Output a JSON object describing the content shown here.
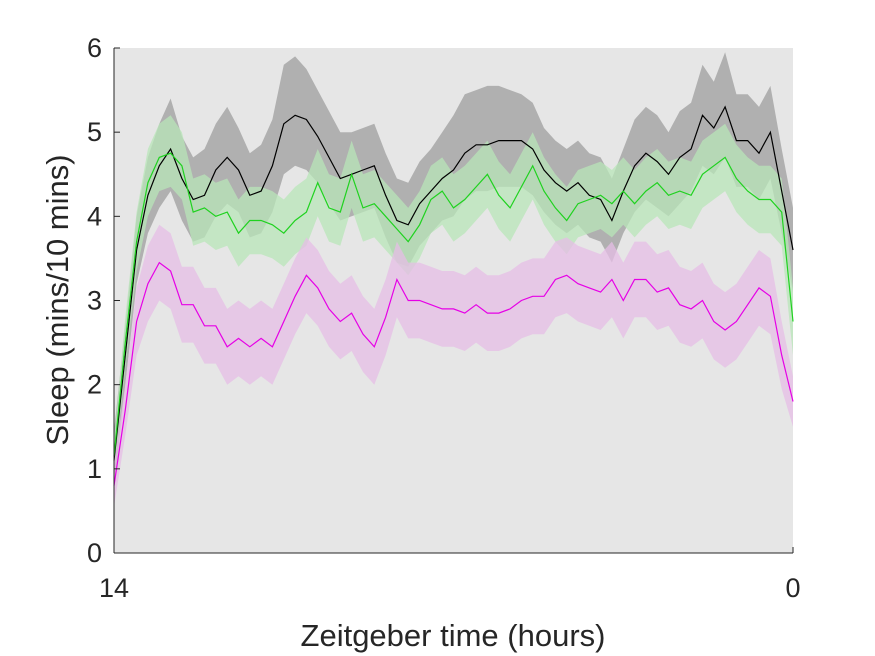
{
  "chart_data": {
    "type": "line",
    "title": "",
    "xlabel": "Zeitgeber time (hours)",
    "ylabel": "Sleep (mins/10 mins)",
    "xlim": [
      14,
      0
    ],
    "ylim": [
      0,
      6
    ],
    "x_ticks": [
      14,
      0
    ],
    "y_ticks": [
      0,
      1,
      2,
      3,
      4,
      5,
      6
    ],
    "grid": false,
    "legend": "none",
    "background_color": "#e6e6e6",
    "n_points": 61,
    "series": [
      {
        "color": "#000000",
        "band_color": "#a6a6a6",
        "values": [
          1.1,
          2.35,
          3.6,
          4.25,
          4.6,
          4.8,
          4.45,
          4.2,
          4.25,
          4.55,
          4.7,
          4.55,
          4.25,
          4.3,
          4.6,
          5.1,
          5.2,
          5.15,
          4.95,
          4.7,
          4.45,
          4.5,
          4.55,
          4.6,
          4.25,
          3.95,
          3.9,
          4.15,
          4.3,
          4.45,
          4.55,
          4.75,
          4.85,
          4.85,
          4.9,
          4.9,
          4.9,
          4.8,
          4.55,
          4.4,
          4.3,
          4.4,
          4.25,
          4.2,
          3.95,
          4.3,
          4.6,
          4.75,
          4.65,
          4.5,
          4.7,
          4.8,
          5.2,
          5.05,
          5.3,
          4.9,
          4.9,
          4.75,
          5.0,
          4.3,
          3.6
        ],
        "lower": [
          0.75,
          2.0,
          3.2,
          3.8,
          4.1,
          4.3,
          3.95,
          3.7,
          3.75,
          4.0,
          4.15,
          4.05,
          3.75,
          3.8,
          4.05,
          4.5,
          4.6,
          4.55,
          4.4,
          4.15,
          3.95,
          4.0,
          4.05,
          4.1,
          3.75,
          3.45,
          3.4,
          3.65,
          3.8,
          3.95,
          4.0,
          4.2,
          4.3,
          4.3,
          4.35,
          4.35,
          4.35,
          4.25,
          4.05,
          3.9,
          3.8,
          3.9,
          3.75,
          3.7,
          3.45,
          3.8,
          4.05,
          4.2,
          4.1,
          4.0,
          4.15,
          4.3,
          4.6,
          4.5,
          4.7,
          4.35,
          4.35,
          4.2,
          4.45,
          3.8,
          3.1
        ],
        "upper": [
          1.45,
          2.7,
          4.0,
          4.7,
          5.1,
          5.4,
          4.95,
          4.7,
          4.8,
          5.1,
          5.3,
          5.05,
          4.75,
          4.85,
          5.15,
          5.8,
          5.9,
          5.75,
          5.5,
          5.25,
          5.0,
          5.0,
          5.05,
          5.1,
          4.75,
          4.45,
          4.4,
          4.65,
          4.8,
          5.0,
          5.2,
          5.45,
          5.5,
          5.55,
          5.55,
          5.5,
          5.45,
          5.35,
          5.05,
          4.9,
          4.8,
          4.9,
          4.75,
          4.7,
          4.45,
          4.8,
          5.15,
          5.3,
          5.2,
          5.0,
          5.25,
          5.35,
          5.8,
          5.6,
          5.95,
          5.45,
          5.45,
          5.3,
          5.55,
          4.8,
          4.1
        ]
      },
      {
        "color": "#1fd21f",
        "band_color": "#b8e6b8",
        "values": [
          1.15,
          2.5,
          3.7,
          4.4,
          4.7,
          4.75,
          4.6,
          4.05,
          4.1,
          4.0,
          4.05,
          3.8,
          3.95,
          3.95,
          3.9,
          3.8,
          3.95,
          4.05,
          4.4,
          4.1,
          4.05,
          4.5,
          4.1,
          4.15,
          4.0,
          3.85,
          3.7,
          3.9,
          4.2,
          4.3,
          4.1,
          4.2,
          4.35,
          4.5,
          4.25,
          4.1,
          4.35,
          4.6,
          4.3,
          4.1,
          3.95,
          4.15,
          4.2,
          4.25,
          4.15,
          4.3,
          4.15,
          4.3,
          4.4,
          4.25,
          4.3,
          4.25,
          4.5,
          4.6,
          4.7,
          4.45,
          4.3,
          4.2,
          4.2,
          4.05,
          2.75
        ],
        "lower": [
          0.95,
          2.2,
          3.35,
          4.0,
          4.3,
          4.35,
          4.2,
          3.65,
          3.7,
          3.6,
          3.65,
          3.4,
          3.55,
          3.55,
          3.5,
          3.4,
          3.55,
          3.65,
          4.0,
          3.7,
          3.65,
          4.1,
          3.7,
          3.75,
          3.6,
          3.45,
          3.3,
          3.5,
          3.8,
          3.9,
          3.7,
          3.8,
          3.95,
          4.1,
          3.85,
          3.7,
          3.95,
          4.2,
          3.9,
          3.7,
          3.55,
          3.75,
          3.8,
          3.85,
          3.75,
          3.9,
          3.75,
          3.9,
          4.0,
          3.85,
          3.9,
          3.85,
          4.1,
          4.2,
          4.3,
          4.05,
          3.9,
          3.8,
          3.8,
          3.65,
          2.35
        ],
        "upper": [
          1.35,
          2.8,
          4.05,
          4.8,
          5.1,
          5.2,
          5.0,
          4.45,
          4.5,
          4.4,
          4.45,
          4.2,
          4.35,
          4.35,
          4.3,
          4.2,
          4.35,
          4.45,
          4.8,
          4.5,
          4.45,
          4.9,
          4.5,
          4.55,
          4.4,
          4.25,
          4.1,
          4.3,
          4.6,
          4.7,
          4.5,
          4.6,
          4.75,
          4.9,
          4.65,
          4.5,
          4.75,
          5.0,
          4.7,
          4.5,
          4.35,
          4.55,
          4.6,
          4.65,
          4.55,
          4.7,
          4.55,
          4.7,
          4.8,
          4.65,
          4.7,
          4.65,
          4.9,
          5.0,
          5.1,
          4.85,
          4.7,
          4.6,
          4.6,
          4.45,
          3.15
        ]
      },
      {
        "color": "#e600e6",
        "band_color": "#e6bde6",
        "values": [
          0.8,
          1.7,
          2.75,
          3.2,
          3.45,
          3.35,
          2.95,
          2.95,
          2.7,
          2.7,
          2.45,
          2.55,
          2.45,
          2.55,
          2.45,
          2.75,
          3.05,
          3.3,
          3.15,
          2.9,
          2.75,
          2.85,
          2.6,
          2.45,
          2.8,
          3.25,
          3.0,
          3.0,
          2.95,
          2.9,
          2.9,
          2.85,
          2.95,
          2.85,
          2.85,
          2.9,
          3.0,
          3.05,
          3.05,
          3.25,
          3.3,
          3.2,
          3.15,
          3.1,
          3.25,
          3.0,
          3.25,
          3.25,
          3.1,
          3.15,
          2.95,
          2.9,
          3.0,
          2.75,
          2.65,
          2.75,
          2.95,
          3.15,
          3.05,
          2.35,
          1.8
        ],
        "lower": [
          0.55,
          1.4,
          2.35,
          2.75,
          3.0,
          2.9,
          2.5,
          2.5,
          2.25,
          2.25,
          2.0,
          2.1,
          2.0,
          2.1,
          2.0,
          2.3,
          2.6,
          2.85,
          2.7,
          2.45,
          2.3,
          2.4,
          2.15,
          2.0,
          2.35,
          2.8,
          2.55,
          2.55,
          2.5,
          2.45,
          2.45,
          2.4,
          2.5,
          2.4,
          2.4,
          2.45,
          2.55,
          2.6,
          2.6,
          2.8,
          2.85,
          2.75,
          2.7,
          2.65,
          2.8,
          2.55,
          2.8,
          2.8,
          2.65,
          2.7,
          2.5,
          2.45,
          2.55,
          2.3,
          2.2,
          2.3,
          2.5,
          2.7,
          2.6,
          1.95,
          1.5
        ],
        "upper": [
          1.05,
          2.0,
          3.15,
          3.65,
          3.9,
          3.8,
          3.4,
          3.4,
          3.15,
          3.15,
          2.9,
          3.0,
          2.9,
          3.0,
          2.9,
          3.2,
          3.5,
          3.75,
          3.6,
          3.35,
          3.2,
          3.3,
          3.05,
          2.9,
          3.25,
          3.7,
          3.45,
          3.45,
          3.4,
          3.35,
          3.35,
          3.3,
          3.4,
          3.3,
          3.3,
          3.35,
          3.45,
          3.5,
          3.5,
          3.7,
          3.75,
          3.65,
          3.6,
          3.55,
          3.7,
          3.45,
          3.7,
          3.7,
          3.55,
          3.6,
          3.4,
          3.35,
          3.45,
          3.2,
          3.1,
          3.2,
          3.4,
          3.6,
          3.5,
          2.75,
          2.1
        ]
      }
    ]
  }
}
